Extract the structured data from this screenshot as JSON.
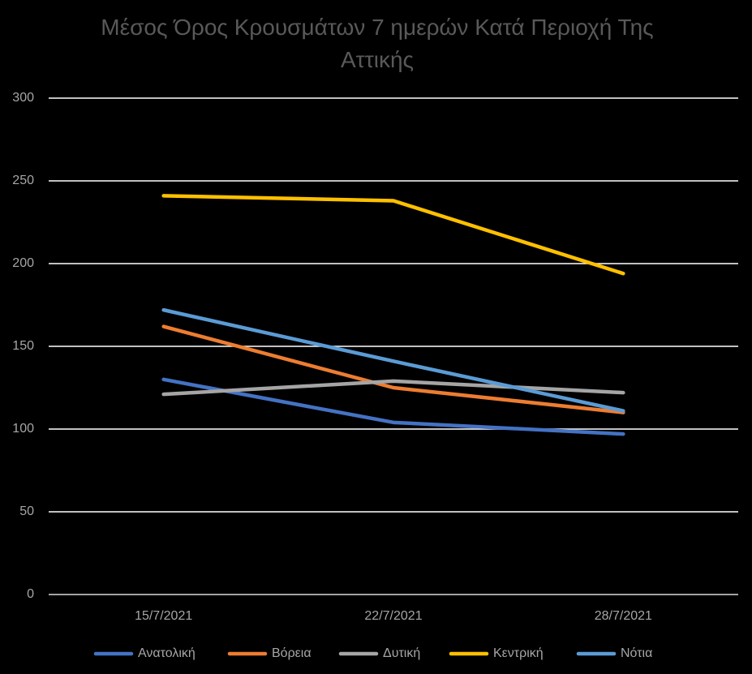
{
  "chart_data": {
    "type": "line",
    "title": "Μέσος Όρος Κρουσμάτων 7 ημερών Κατά Περιοχή Της Αττικής",
    "categories": [
      "15/7/2021",
      "22/7/2021",
      "28/7/2021"
    ],
    "series": [
      {
        "name": "Ανατολική",
        "color": "#4472c4",
        "values": [
          130,
          104,
          97
        ]
      },
      {
        "name": "Βόρεια",
        "color": "#ed7d31",
        "values": [
          162,
          125,
          110
        ]
      },
      {
        "name": "Δυτική",
        "color": "#a5a5a5",
        "values": [
          121,
          129,
          122
        ]
      },
      {
        "name": "Κεντρική",
        "color": "#ffc000",
        "values": [
          241,
          238,
          194
        ]
      },
      {
        "name": "Νότια",
        "color": "#5b9bd5",
        "values": [
          172,
          141,
          111
        ]
      }
    ],
    "ylim": [
      0,
      300
    ],
    "yticks": [
      0,
      50,
      100,
      150,
      200,
      250,
      300
    ],
    "grid": true,
    "legend": "bottom"
  }
}
